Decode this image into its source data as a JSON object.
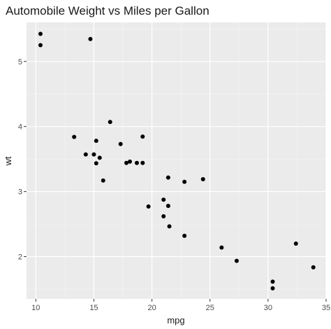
{
  "chart_data": {
    "type": "scatter",
    "title": "Automobile Weight vs Miles per Gallon",
    "xlabel": "mpg",
    "ylabel": "wt",
    "xlim": [
      9.2,
      35.0
    ],
    "ylim": [
      1.35,
      5.6
    ],
    "x_ticks": [
      10,
      15,
      20,
      25,
      30,
      35
    ],
    "x_tick_labels": [
      "10",
      "15",
      "20",
      "25",
      "30",
      "35"
    ],
    "y_ticks": [
      2,
      3,
      4,
      5
    ],
    "y_tick_labels": [
      "2",
      "3",
      "4",
      "5"
    ],
    "grid": true,
    "legend": "none",
    "colors": {
      "panel_background": "#ebebeb",
      "grid_major": "#ffffff",
      "grid_minor": "#f5f5f5",
      "point": "#000000",
      "tick": "#333333"
    },
    "points": [
      {
        "x": 21.0,
        "y": 2.62
      },
      {
        "x": 21.0,
        "y": 2.875
      },
      {
        "x": 22.8,
        "y": 2.32
      },
      {
        "x": 21.4,
        "y": 3.215
      },
      {
        "x": 18.7,
        "y": 3.44
      },
      {
        "x": 18.1,
        "y": 3.46
      },
      {
        "x": 14.3,
        "y": 3.57
      },
      {
        "x": 24.4,
        "y": 3.19
      },
      {
        "x": 22.8,
        "y": 3.15
      },
      {
        "x": 19.2,
        "y": 3.44
      },
      {
        "x": 17.8,
        "y": 3.44
      },
      {
        "x": 16.4,
        "y": 4.07
      },
      {
        "x": 17.3,
        "y": 3.73
      },
      {
        "x": 15.2,
        "y": 3.78
      },
      {
        "x": 10.4,
        "y": 5.25
      },
      {
        "x": 10.4,
        "y": 5.424
      },
      {
        "x": 14.7,
        "y": 5.345
      },
      {
        "x": 32.4,
        "y": 2.2
      },
      {
        "x": 30.4,
        "y": 1.615
      },
      {
        "x": 33.9,
        "y": 1.835
      },
      {
        "x": 21.5,
        "y": 2.465
      },
      {
        "x": 15.5,
        "y": 3.52
      },
      {
        "x": 15.2,
        "y": 3.435
      },
      {
        "x": 13.3,
        "y": 3.84
      },
      {
        "x": 19.2,
        "y": 3.845
      },
      {
        "x": 27.3,
        "y": 1.935
      },
      {
        "x": 26.0,
        "y": 2.14
      },
      {
        "x": 30.4,
        "y": 1.513
      },
      {
        "x": 15.8,
        "y": 3.17
      },
      {
        "x": 19.7,
        "y": 2.77
      },
      {
        "x": 15.0,
        "y": 3.57
      },
      {
        "x": 21.4,
        "y": 2.78
      }
    ]
  }
}
